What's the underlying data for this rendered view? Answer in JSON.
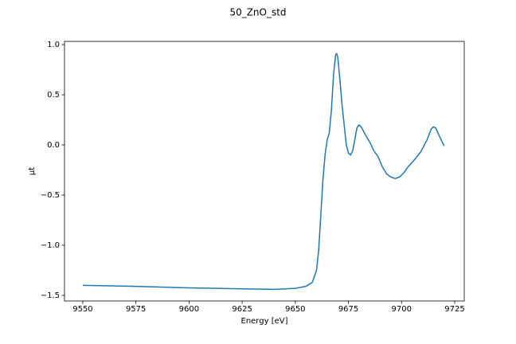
{
  "chart_data": {
    "type": "line",
    "title": "50_ZnO_std",
    "xlabel": "Energy [eV]",
    "ylabel": "μt",
    "xlim": [
      9541.4,
      9729.5
    ],
    "ylim": [
      -1.556,
      1.032
    ],
    "xticks": [
      9550,
      9575,
      9600,
      9625,
      9650,
      9675,
      9700,
      9725
    ],
    "yticks": [
      {
        "value": -1.5,
        "label": "−1.5"
      },
      {
        "value": -1.0,
        "label": "−1.0"
      },
      {
        "value": -0.5,
        "label": "−0.5"
      },
      {
        "value": 0.0,
        "label": "0.0"
      },
      {
        "value": 0.5,
        "label": "0.5"
      },
      {
        "value": 1.0,
        "label": "1.0"
      }
    ],
    "series": [
      {
        "color": "#1f77b4",
        "x": [
          9550,
          9575,
          9600,
          9625,
          9640,
          9650,
          9655,
          9658,
          9660,
          9661,
          9662,
          9663,
          9664,
          9665,
          9666,
          9667,
          9668,
          9669,
          9669.5,
          9670,
          9671,
          9672,
          9673,
          9674,
          9675,
          9676,
          9677,
          9678,
          9679,
          9680,
          9681,
          9683,
          9685,
          9687,
          9689,
          9691,
          9693,
          9695,
          9697,
          9699,
          9701,
          9703,
          9706,
          9709,
          9712,
          9714,
          9715,
          9716,
          9718,
          9720
        ],
        "values": [
          -1.4,
          -1.41,
          -1.425,
          -1.435,
          -1.44,
          -1.43,
          -1.41,
          -1.37,
          -1.25,
          -1.05,
          -0.7,
          -0.35,
          -0.1,
          0.05,
          0.12,
          0.35,
          0.7,
          0.9,
          0.91,
          0.87,
          0.65,
          0.4,
          0.2,
          0.0,
          -0.08,
          -0.1,
          -0.06,
          0.05,
          0.17,
          0.2,
          0.18,
          0.1,
          0.03,
          -0.06,
          -0.12,
          -0.22,
          -0.29,
          -0.32,
          -0.335,
          -0.32,
          -0.28,
          -0.22,
          -0.15,
          -0.07,
          0.05,
          0.16,
          0.18,
          0.17,
          0.08,
          -0.01
        ]
      }
    ]
  }
}
